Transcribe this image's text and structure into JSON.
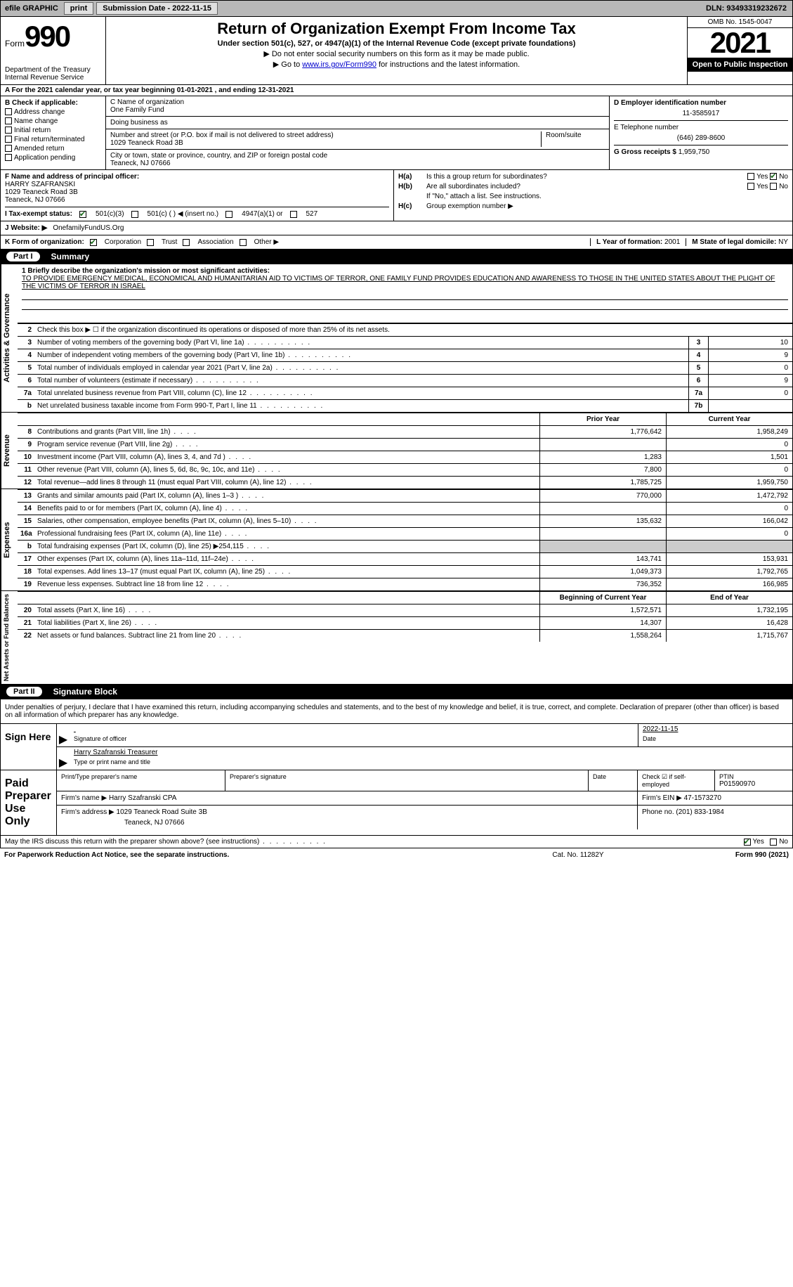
{
  "topbar": {
    "efile": "efile GRAPHIC",
    "print": "print",
    "subdate_label": "Submission Date - ",
    "subdate": "2022-11-15",
    "dln_label": "DLN: ",
    "dln": "93493319232672"
  },
  "header": {
    "form_word": "Form",
    "form_no": "990",
    "dept": "Department of the Treasury",
    "irs": "Internal Revenue Service",
    "title": "Return of Organization Exempt From Income Tax",
    "subtitle": "Under section 501(c), 527, or 4947(a)(1) of the Internal Revenue Code (except private foundations)",
    "note1": "▶ Do not enter social security numbers on this form as it may be made public.",
    "note2_pre": "▶ Go to ",
    "note2_link": "www.irs.gov/Form990",
    "note2_post": " for instructions and the latest information.",
    "omb": "OMB No. 1545-0047",
    "year": "2021",
    "open": "Open to Public Inspection"
  },
  "rowA": {
    "text": "A For the 2021 calendar year, or tax year beginning 01-01-2021   , and ending 12-31-2021"
  },
  "B": {
    "label": "B Check if applicable:",
    "opts": [
      "Address change",
      "Name change",
      "Initial return",
      "Final return/terminated",
      "Amended return",
      "Application pending"
    ]
  },
  "C": {
    "name_label": "C Name of organization",
    "name": "One Family Fund",
    "dba_label": "Doing business as",
    "dba": "",
    "street_label": "Number and street (or P.O. box if mail is not delivered to street address)",
    "room_label": "Room/suite",
    "street": "1029 Teaneck Road 3B",
    "city_label": "City or town, state or province, country, and ZIP or foreign postal code",
    "city": "Teaneck, NJ  07666"
  },
  "D": {
    "ein_label": "D Employer identification number",
    "ein": "11-3585917",
    "phone_label": "E Telephone number",
    "phone": "(646) 289-8600",
    "gross_label": "G Gross receipts $ ",
    "gross": "1,959,750"
  },
  "F": {
    "label": "F  Name and address of principal officer:",
    "name": "HARRY SZAFRANSKI",
    "addr1": "1029 Teaneck Road 3B",
    "addr2": "Teaneck, NJ  07666"
  },
  "H": {
    "a_label": "H(a)",
    "a_text": "Is this a group return for subordinates?",
    "a_yes": "Yes",
    "a_no": "No",
    "b_label": "H(b)",
    "b_text": "Are all subordinates included?",
    "b_note": "If \"No,\" attach a list. See instructions.",
    "c_label": "H(c)",
    "c_text": "Group exemption number ▶"
  },
  "I": {
    "label": "I   Tax-exempt status:",
    "o1": "501(c)(3)",
    "o2": "501(c) (  ) ◀ (insert no.)",
    "o3": "4947(a)(1) or",
    "o4": "527"
  },
  "J": {
    "label": "J   Website: ▶ ",
    "val": "OnefamilyFundUS.Org"
  },
  "K": {
    "label": "K Form of organization:",
    "o1": "Corporation",
    "o2": "Trust",
    "o3": "Association",
    "o4": "Other ▶"
  },
  "L": {
    "label": "L Year of formation: ",
    "val": "2001"
  },
  "M": {
    "label": "M State of legal domicile: ",
    "val": "NY"
  },
  "partI": {
    "part": "Part I",
    "title": "Summary",
    "tab1": "Activities & Governance",
    "tab2": "Revenue",
    "tab3": "Expenses",
    "tab4": "Net Assets or Fund Balances",
    "line1_label": "1   Briefly describe the organization's mission or most significant activities:",
    "line1_text": "TO PROVIDE EMERGENCY MEDICAL, ECONOMICAL AND HUMANITARIAN AID TO VICTIMS OF TERROR, ONE FAMILY FUND PROVIDES EDUCATION AND AWARENESS TO THOSE IN THE UNITED STATES ABOUT THE PLIGHT OF THE VICTIMS OF TERROR IN ISRAEL",
    "line2": "Check this box ▶ ☐ if the organization discontinued its operations or disposed of more than 25% of its net assets.",
    "rows_gov": [
      {
        "n": "3",
        "desc": "Number of voting members of the governing body (Part VI, line 1a)",
        "box": "3",
        "val": "10"
      },
      {
        "n": "4",
        "desc": "Number of independent voting members of the governing body (Part VI, line 1b)",
        "box": "4",
        "val": "9"
      },
      {
        "n": "5",
        "desc": "Total number of individuals employed in calendar year 2021 (Part V, line 2a)",
        "box": "5",
        "val": "0"
      },
      {
        "n": "6",
        "desc": "Total number of volunteers (estimate if necessary)",
        "box": "6",
        "val": "9"
      },
      {
        "n": "7a",
        "desc": "Total unrelated business revenue from Part VIII, column (C), line 12",
        "box": "7a",
        "val": "0"
      },
      {
        "n": "b",
        "desc": "Net unrelated business taxable income from Form 990-T, Part I, line 11",
        "box": "7b",
        "val": ""
      }
    ],
    "hdr_prior": "Prior Year",
    "hdr_curr": "Current Year",
    "rows_rev": [
      {
        "n": "8",
        "desc": "Contributions and grants (Part VIII, line 1h)",
        "c1": "1,776,642",
        "c2": "1,958,249"
      },
      {
        "n": "9",
        "desc": "Program service revenue (Part VIII, line 2g)",
        "c1": "",
        "c2": "0"
      },
      {
        "n": "10",
        "desc": "Investment income (Part VIII, column (A), lines 3, 4, and 7d )",
        "c1": "1,283",
        "c2": "1,501"
      },
      {
        "n": "11",
        "desc": "Other revenue (Part VIII, column (A), lines 5, 6d, 8c, 9c, 10c, and 11e)",
        "c1": "7,800",
        "c2": "0"
      },
      {
        "n": "12",
        "desc": "Total revenue—add lines 8 through 11 (must equal Part VIII, column (A), line 12)",
        "c1": "1,785,725",
        "c2": "1,959,750"
      }
    ],
    "rows_exp": [
      {
        "n": "13",
        "desc": "Grants and similar amounts paid (Part IX, column (A), lines 1–3 )",
        "c1": "770,000",
        "c2": "1,472,792"
      },
      {
        "n": "14",
        "desc": "Benefits paid to or for members (Part IX, column (A), line 4)",
        "c1": "",
        "c2": "0"
      },
      {
        "n": "15",
        "desc": "Salaries, other compensation, employee benefits (Part IX, column (A), lines 5–10)",
        "c1": "135,632",
        "c2": "166,042"
      },
      {
        "n": "16a",
        "desc": "Professional fundraising fees (Part IX, column (A), line 11e)",
        "c1": "",
        "c2": "0"
      },
      {
        "n": "b",
        "desc": "Total fundraising expenses (Part IX, column (D), line 25) ▶254,115",
        "c1": "grey",
        "c2": "grey"
      },
      {
        "n": "17",
        "desc": "Other expenses (Part IX, column (A), lines 11a–11d, 11f–24e)",
        "c1": "143,741",
        "c2": "153,931"
      },
      {
        "n": "18",
        "desc": "Total expenses. Add lines 13–17 (must equal Part IX, column (A), line 25)",
        "c1": "1,049,373",
        "c2": "1,792,765"
      },
      {
        "n": "19",
        "desc": "Revenue less expenses. Subtract line 18 from line 12",
        "c1": "736,352",
        "c2": "166,985"
      }
    ],
    "hdr_boy": "Beginning of Current Year",
    "hdr_eoy": "End of Year",
    "rows_net": [
      {
        "n": "20",
        "desc": "Total assets (Part X, line 16)",
        "c1": "1,572,571",
        "c2": "1,732,195"
      },
      {
        "n": "21",
        "desc": "Total liabilities (Part X, line 26)",
        "c1": "14,307",
        "c2": "16,428"
      },
      {
        "n": "22",
        "desc": "Net assets or fund balances. Subtract line 21 from line 20",
        "c1": "1,558,264",
        "c2": "1,715,767"
      }
    ]
  },
  "partII": {
    "part": "Part II",
    "title": "Signature Block",
    "para": "Under penalties of perjury, I declare that I have examined this return, including accompanying schedules and statements, and to the best of my knowledge and belief, it is true, correct, and complete. Declaration of preparer (other than officer) is based on all information of which preparer has any knowledge.",
    "sign_here": "Sign Here",
    "sig_officer": "Signature of officer",
    "sig_date": "2022-11-15",
    "date_label": "Date",
    "name_title": "Harry Szafranski  Treasurer",
    "name_label": "Type or print name and title",
    "paid": "Paid Preparer Use Only",
    "p_name_label": "Print/Type preparer's name",
    "p_sig_label": "Preparer's signature",
    "p_date_label": "Date",
    "p_check_label": "Check ☑ if self-employed",
    "ptin_label": "PTIN",
    "ptin": "P01590970",
    "firm_name_label": "Firm's name   ▶ ",
    "firm_name": "Harry Szafranski CPA",
    "firm_ein_label": "Firm's EIN ▶ ",
    "firm_ein": "47-1573270",
    "firm_addr_label": "Firm's address ▶ ",
    "firm_addr1": "1029 Teaneck Road Suite 3B",
    "firm_addr2": "Teaneck, NJ  07666",
    "firm_phone_label": "Phone no. ",
    "firm_phone": "(201) 833-1984",
    "may_irs": "May the IRS discuss this return with the preparer shown above? (see instructions)",
    "yes": "Yes",
    "no": "No"
  },
  "footer": {
    "f1": "For Paperwork Reduction Act Notice, see the separate instructions.",
    "f2": "Cat. No. 11282Y",
    "f3": "Form 990 (2021)"
  }
}
